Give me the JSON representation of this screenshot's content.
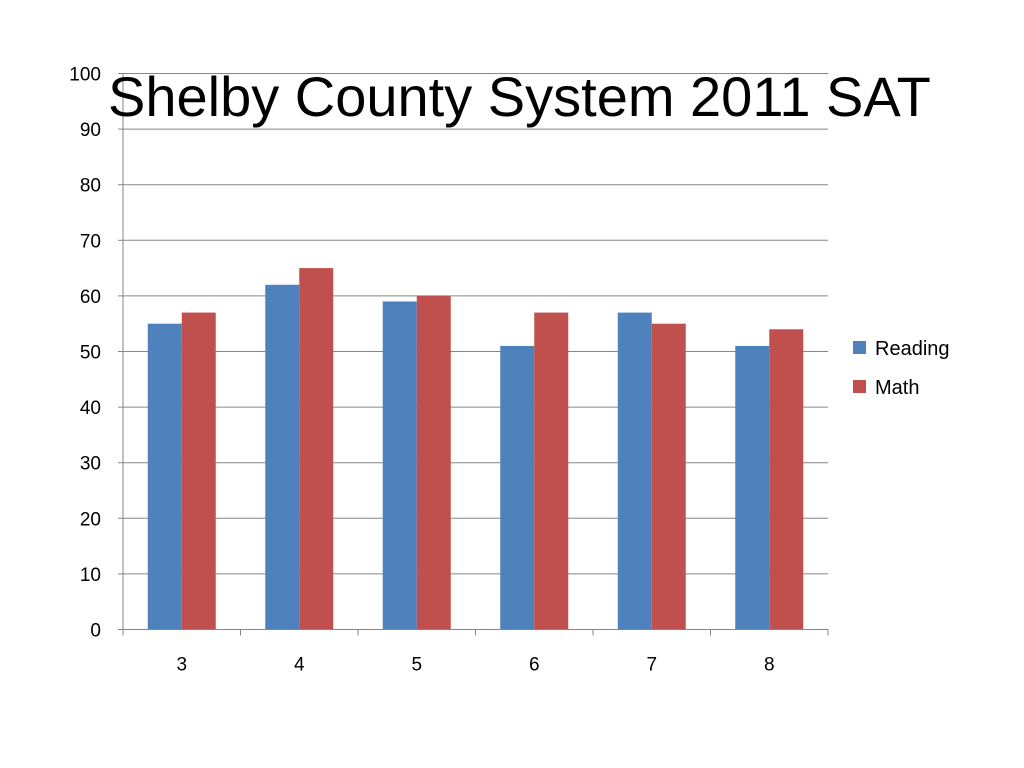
{
  "slide": {
    "title": "Shelby County System 2011 SAT"
  },
  "chart_data": {
    "type": "bar",
    "title": "Shelby County System 2011 SAT",
    "xlabel": "",
    "ylabel": "",
    "categories": [
      "3",
      "4",
      "5",
      "6",
      "7",
      "8"
    ],
    "series": [
      {
        "name": "Reading",
        "values": [
          55,
          62,
          59,
          51,
          57,
          51
        ],
        "color": "#4F81BD"
      },
      {
        "name": "Math",
        "values": [
          57,
          65,
          60,
          57,
          55,
          54
        ],
        "color": "#C0504D"
      }
    ],
    "ylim": [
      0,
      100
    ],
    "yticks": [
      "0",
      "10",
      "20",
      "30",
      "40",
      "50",
      "60",
      "70",
      "80",
      "90",
      "100"
    ],
    "grid": true,
    "legend_position": "right"
  }
}
